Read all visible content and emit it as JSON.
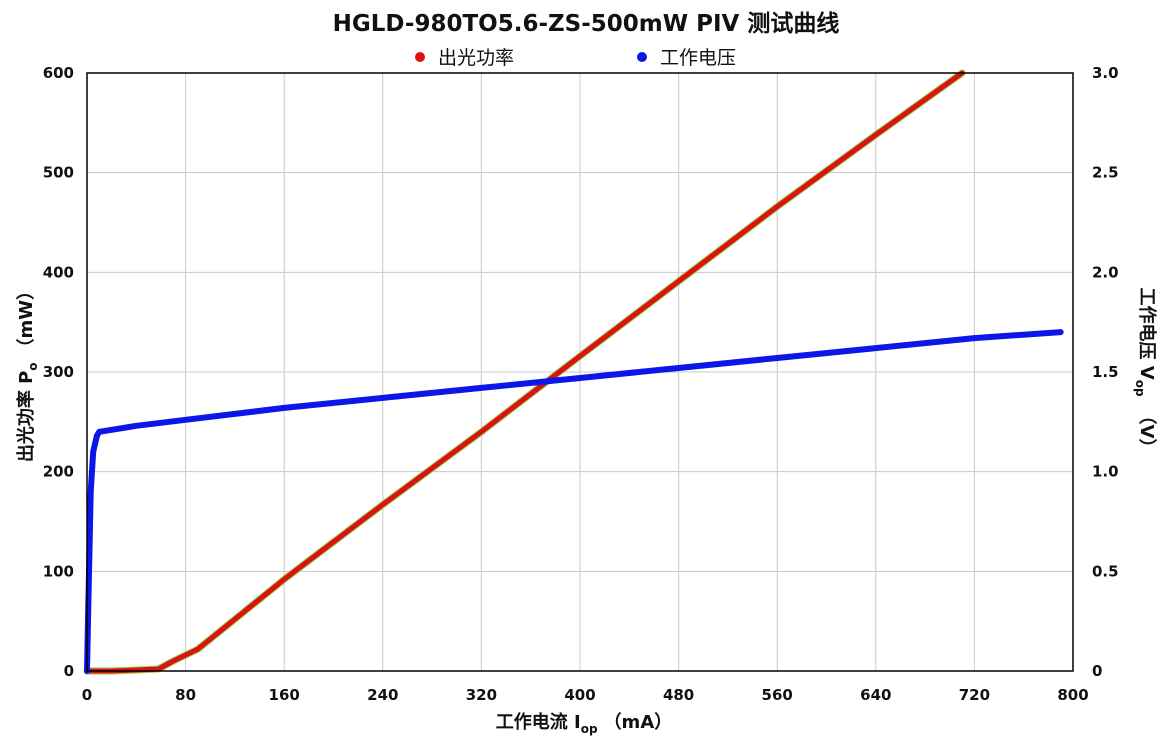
{
  "chart_data": {
    "type": "line",
    "title": "HGLD-980TO5.6-ZS-500mW PIV 测试曲线",
    "xlabel": {
      "main": "工作电流 I",
      "sub": "op",
      "unit": "（mA）"
    },
    "ylabel_left": {
      "main": "出光功率 P",
      "sub": "o",
      "unit": "（mW）"
    },
    "ylabel_right": {
      "main": "工作电压 V",
      "sub": "op",
      "unit": "（V）"
    },
    "xlim": [
      0,
      800
    ],
    "ylim_left": [
      0,
      600
    ],
    "ylim_right": [
      0,
      3.0
    ],
    "x_ticks": [
      "0",
      "80",
      "160",
      "240",
      "320",
      "400",
      "480",
      "560",
      "640",
      "720",
      "800"
    ],
    "y_left_ticks": [
      "0",
      "100",
      "200",
      "300",
      "400",
      "500",
      "600"
    ],
    "y_right_ticks": [
      "0",
      "0.5",
      "1.0",
      "1.5",
      "2.0",
      "2.5",
      "3.0"
    ],
    "grid": true,
    "legend_position": "top-center",
    "series": [
      {
        "name": "出光功率",
        "axis": "left",
        "color": "#dd1111",
        "x": [
          0,
          20,
          40,
          58,
          70,
          90,
          160,
          240,
          320,
          400,
          480,
          560,
          640,
          710
        ],
        "y": [
          0,
          0,
          1,
          2,
          10,
          22,
          92,
          167,
          240,
          316,
          391,
          466,
          538,
          600
        ]
      },
      {
        "name": "工作电压",
        "axis": "right",
        "color": "#0b16e8",
        "x": [
          0,
          1,
          3,
          5,
          8,
          10,
          20,
          40,
          80,
          160,
          240,
          320,
          400,
          480,
          560,
          640,
          720,
          790
        ],
        "y": [
          0,
          0.3,
          0.9,
          1.1,
          1.18,
          1.2,
          1.21,
          1.23,
          1.26,
          1.32,
          1.37,
          1.42,
          1.47,
          1.52,
          1.57,
          1.62,
          1.67,
          1.7
        ]
      }
    ]
  }
}
